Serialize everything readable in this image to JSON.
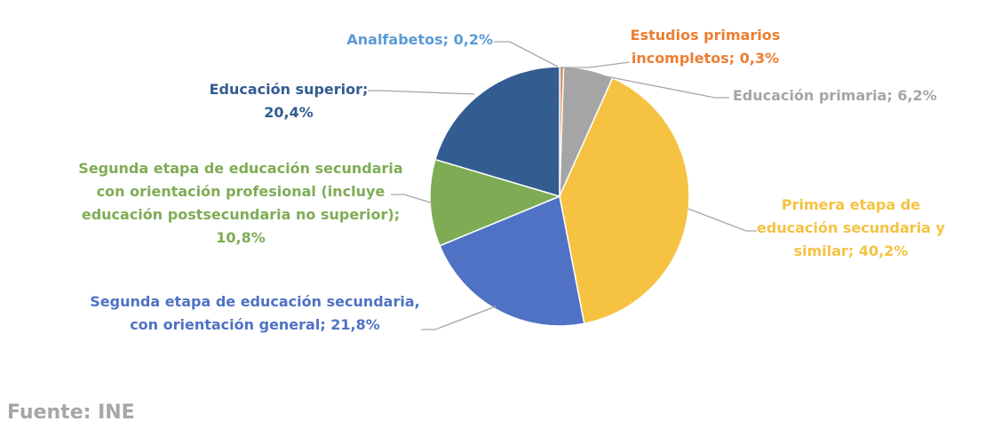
{
  "chart_data": {
    "type": "pie",
    "title": "",
    "slices": [
      {
        "name": "Analfabetos",
        "value": 0.2,
        "label": [
          "Analfabetos; 0,2%"
        ],
        "color": "#5b9bd5"
      },
      {
        "name": "Estudios primarios incompletos",
        "value": 0.3,
        "label": [
          "Estudios primarios",
          "incompletos; 0,3%"
        ],
        "color": "#ed7d31"
      },
      {
        "name": "Educación primaria",
        "value": 6.2,
        "label": [
          "Educación primaria; 6,2%"
        ],
        "color": "#a5a5a5"
      },
      {
        "name": "Primera etapa de educación secundaria y similar",
        "value": 40.2,
        "label": [
          "Primera etapa de",
          "educación secundaria y",
          "similar; 40,2%"
        ],
        "color": "#f5c242"
      },
      {
        "name": "Segunda etapa de educación secundaria, con orientación general",
        "value": 21.8,
        "label": [
          "Segunda etapa de educación secundaria,",
          "con orientación general; 21,8%"
        ],
        "color": "#4f72c4"
      },
      {
        "name": "Segunda etapa de educación secundaria con orientación profesional (incluye educación postsecundaria no superior)",
        "value": 10.8,
        "label": [
          "Segunda etapa de educación secundaria",
          "con orientación profesional (incluye",
          "educación postsecundaria no superior);",
          "10,8%"
        ],
        "color": "#7eac55"
      },
      {
        "name": "Educación superior",
        "value": 20.4,
        "label": [
          "Educación superior;",
          "20,4%"
        ],
        "color": "#335d91"
      }
    ]
  },
  "source_text": "Fuente: INE",
  "leader_color": "#a6a6a6"
}
